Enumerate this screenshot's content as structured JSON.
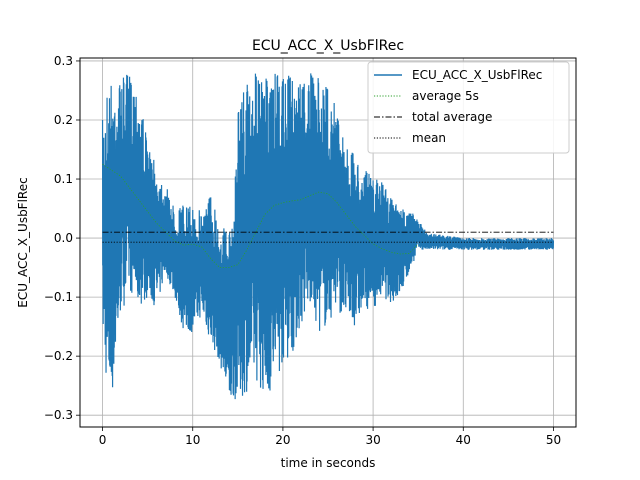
{
  "chart_data": {
    "type": "line",
    "title": "ECU_ACC_X_UsbFlRec",
    "xlabel": "time in seconds",
    "ylabel": "ECU_ACC_X_UsbFlRec",
    "xlim": [
      -2.5,
      52.5
    ],
    "ylim": [
      -0.32,
      0.305
    ],
    "xticks": [
      0,
      10,
      20,
      30,
      40,
      50
    ],
    "yticks": [
      -0.3,
      -0.2,
      -0.1,
      0.0,
      0.1,
      0.2,
      0.3
    ],
    "xtick_labels": [
      "0",
      "10",
      "20",
      "30",
      "40",
      "50"
    ],
    "ytick_labels": [
      "−0.3",
      "−0.2",
      "−0.1",
      "0.0",
      "0.1",
      "0.2",
      "0.3"
    ],
    "grid": true,
    "legend_position": "top-right",
    "series": [
      {
        "name": "ECU_ACC_X_UsbFlRec",
        "style": "solid",
        "color": "#1f77b4",
        "envelope": {
          "x": [
            0,
            0.5,
            1,
            2,
            3,
            4,
            5,
            6,
            7,
            8,
            9,
            10,
            11,
            12,
            13,
            14,
            14.5,
            15,
            16,
            17,
            18,
            19,
            20,
            21,
            22,
            23,
            24,
            25,
            26,
            27,
            28,
            29,
            30,
            31,
            32,
            33,
            34,
            35,
            36,
            40,
            45,
            50
          ],
          "max": [
            0.2,
            0.26,
            0.27,
            0.27,
            0.28,
            0.26,
            0.16,
            0.12,
            0.09,
            0.05,
            0.06,
            0.05,
            0.05,
            0.08,
            0.03,
            0.01,
            0.02,
            0.24,
            0.27,
            0.28,
            0.27,
            0.28,
            0.27,
            0.28,
            0.27,
            0.28,
            0.27,
            0.26,
            0.22,
            0.16,
            0.14,
            0.12,
            0.1,
            0.1,
            0.07,
            0.05,
            0.05,
            0.03,
            0.01,
            0.0,
            0.0,
            0.0
          ],
          "min": [
            -0.16,
            -0.26,
            -0.28,
            -0.13,
            -0.09,
            -0.12,
            -0.1,
            -0.12,
            -0.06,
            -0.1,
            -0.16,
            -0.16,
            -0.13,
            -0.18,
            -0.21,
            -0.29,
            -0.27,
            -0.28,
            -0.26,
            -0.24,
            -0.27,
            -0.26,
            -0.21,
            -0.2,
            -0.15,
            -0.12,
            -0.16,
            -0.15,
            -0.12,
            -0.14,
            -0.15,
            -0.12,
            -0.12,
            -0.1,
            -0.11,
            -0.1,
            -0.06,
            -0.02,
            -0.02,
            -0.02,
            -0.02,
            -0.02
          ]
        }
      },
      {
        "name": "average 5s",
        "style": "dotted",
        "color": "#2ca02c",
        "x": [
          0,
          1,
          2,
          3,
          4,
          5,
          6,
          7,
          8,
          9,
          10,
          11,
          12,
          13,
          14,
          15,
          16,
          17,
          18,
          19,
          20,
          21,
          22,
          23,
          24,
          25,
          26,
          27,
          28,
          29,
          30,
          31,
          32,
          33,
          34,
          35
        ],
        "values": [
          0.125,
          0.115,
          0.105,
          0.085,
          0.065,
          0.045,
          0.025,
          0.01,
          -0.005,
          -0.012,
          -0.01,
          -0.015,
          -0.035,
          -0.05,
          -0.05,
          -0.045,
          -0.02,
          0.01,
          0.04,
          0.055,
          0.06,
          0.063,
          0.065,
          0.072,
          0.078,
          0.075,
          0.06,
          0.04,
          0.02,
          0.005,
          -0.01,
          -0.018,
          -0.024,
          -0.027,
          -0.026,
          -0.01
        ]
      },
      {
        "name": "total average",
        "style": "dashdot",
        "color": "#000000",
        "x": [
          0,
          50
        ],
        "values": [
          0.01,
          0.01
        ]
      },
      {
        "name": "mean",
        "style": "dotted",
        "color": "#000000",
        "x": [
          0,
          50
        ],
        "values": [
          -0.007,
          -0.007
        ]
      }
    ]
  }
}
